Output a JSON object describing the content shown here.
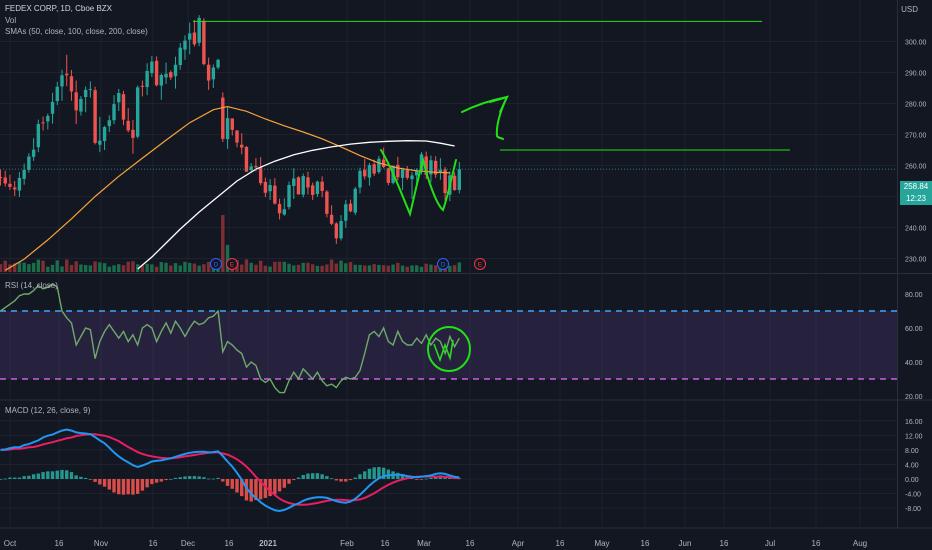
{
  "header": {
    "symbol": "FEDEX CORP, 1D, Cboe BZX",
    "vol": "Vol",
    "smas": "SMAs (50, close, 100, close, 200, close)",
    "currency": "USD"
  },
  "price_badge": {
    "price": "258.84",
    "countdown": "12:23"
  },
  "rsi_header": "RSI (14, close)",
  "macd_header": "MACD (12, 26, close, 9)",
  "event_markers": [
    {
      "letter": "D",
      "x_label": "Dec 7"
    },
    {
      "letter": "E",
      "x_label": "Dec 17"
    },
    {
      "letter": "D",
      "x_label": "Mar 5"
    },
    {
      "letter": "E",
      "x_label": "Mar 18"
    }
  ],
  "colors": {
    "background": "#131722",
    "up": "#26a69a",
    "down": "#ef5350",
    "sma_orange": "#f7a33a",
    "sma_white": "#ffffff",
    "annotation_green": "#22e017",
    "rsi_line": "#6fa96b",
    "rsi_band": "#7e57c2",
    "rsi_upper_dash": "#42a5f5",
    "rsi_lower_dash": "#d05ce3",
    "macd_line": "#2196f3",
    "signal_line": "#e91e63"
  },
  "chart_data": [
    {
      "type": "candlestick",
      "title": "FEDEX CORP, 1D, Cboe BZX",
      "ylim": [
        225,
        310
      ],
      "y_ticks": [
        "230.00",
        "240.00",
        "250.00",
        "260.00",
        "270.00",
        "280.00",
        "290.00",
        "300.00"
      ],
      "x_ticks": [
        "Oct",
        "16",
        "Nov",
        "16",
        "Dec",
        "16",
        "2021",
        "Feb",
        "16",
        "Mar",
        "16",
        "Apr",
        "16",
        "May",
        "16",
        "Jun",
        "16",
        "Jul",
        "16",
        "Aug"
      ],
      "last_close": 258.84,
      "candles": [
        [
          256.3,
          258.6,
          253.5,
          256.2
        ],
        [
          256.1,
          258.3,
          253.2,
          254.2
        ],
        [
          254.1,
          257.0,
          252.1,
          253.1
        ],
        [
          252.9,
          255.0,
          250.2,
          252.3
        ],
        [
          251.9,
          257.9,
          249.8,
          256.0
        ],
        [
          255.7,
          260.6,
          253.8,
          258.6
        ],
        [
          258.6,
          264.0,
          257.7,
          262.9
        ],
        [
          262.8,
          268.8,
          261.5,
          265.1
        ],
        [
          265.9,
          274.8,
          264.3,
          273.4
        ],
        [
          273.9,
          275.8,
          271.3,
          273.6
        ],
        [
          274.2,
          276.8,
          271.6,
          276.0
        ],
        [
          276.7,
          283.5,
          273.5,
          280.5
        ],
        [
          280.8,
          287.0,
          279.5,
          285.4
        ],
        [
          285.5,
          290.9,
          280.9,
          289.1
        ],
        [
          289.6,
          295.7,
          285.6,
          289.1
        ],
        [
          288.8,
          290.8,
          280.9,
          283.9
        ],
        [
          283.6,
          287.4,
          273.4,
          277.8
        ],
        [
          277.4,
          282.4,
          276.1,
          281.5
        ],
        [
          282.1,
          285.5,
          277.2,
          284.4
        ],
        [
          284.4,
          287.1,
          281.9,
          284.7
        ],
        [
          284.3,
          285.4,
          266.8,
          267.3
        ],
        [
          266.7,
          275.7,
          264.3,
          268.0
        ],
        [
          267.9,
          272.8,
          265.0,
          272.4
        ],
        [
          272.7,
          276.2,
          270.8,
          274.6
        ],
        [
          274.6,
          282.7,
          273.3,
          279.8
        ],
        [
          280.4,
          284.7,
          277.6,
          283.4
        ],
        [
          283.0,
          284.1,
          273.0,
          274.8
        ],
        [
          274.4,
          278.5,
          270.7,
          271.3
        ],
        [
          271.5,
          274.7,
          263.8,
          268.9
        ],
        [
          269.3,
          285.8,
          268.7,
          285.2
        ],
        [
          285.7,
          287.4,
          282.3,
          285.6
        ],
        [
          285.3,
          293.0,
          282.7,
          290.5
        ],
        [
          289.8,
          295.3,
          288.6,
          293.5
        ],
        [
          293.8,
          295.2,
          285.5,
          285.9
        ],
        [
          285.8,
          289.7,
          281.2,
          289.2
        ],
        [
          288.4,
          293.2,
          286.3,
          289.6
        ],
        [
          290.1,
          290.7,
          287.6,
          288.4
        ],
        [
          288.8,
          295.1,
          284.8,
          292.5
        ],
        [
          292.4,
          299.5,
          290.9,
          298.0
        ],
        [
          297.4,
          302.0,
          294.1,
          300.3
        ],
        [
          300.6,
          306.1,
          295.9,
          302.6
        ],
        [
          302.9,
          306.9,
          298.4,
          299.1
        ],
        [
          299.6,
          308.5,
          298.5,
          307.6
        ],
        [
          306.7,
          307.5,
          292.3,
          292.7
        ],
        [
          292.5,
          294.8,
          284.4,
          287.4
        ],
        [
          287.8,
          292.6,
          285.0,
          291.6
        ],
        [
          291.6,
          294.4,
          291.0,
          294.1
        ],
        [
          281.9,
          283.6,
          267.6,
          268.6
        ],
        [
          268.5,
          279.0,
          265.4,
          275.3
        ],
        [
          275.2,
          275.2,
          269.7,
          271.5
        ],
        [
          271.3,
          271.4,
          265.9,
          267.4
        ],
        [
          266.7,
          270.4,
          263.6,
          265.8
        ],
        [
          266.0,
          266.3,
          257.9,
          258.0
        ],
        [
          258.5,
          260.8,
          257.9,
          259.7
        ],
        [
          259.8,
          262.4,
          258.1,
          259.4
        ],
        [
          259.4,
          262.7,
          253.6,
          254.3
        ],
        [
          254.7,
          256.1,
          249.8,
          251.2
        ],
        [
          251.7,
          255.6,
          248.9,
          253.7
        ],
        [
          253.5,
          255.9,
          247.4,
          247.7
        ],
        [
          247.6,
          249.3,
          242.6,
          244.6
        ],
        [
          244.2,
          249.4,
          243.8,
          245.9
        ],
        [
          246.6,
          254.8,
          245.8,
          253.7
        ],
        [
          253.4,
          259.1,
          249.2,
          255.8
        ],
        [
          256.2,
          256.5,
          250.6,
          250.7
        ],
        [
          250.6,
          257.4,
          249.7,
          256.6
        ],
        [
          256.2,
          258.0,
          250.7,
          252.9
        ],
        [
          253.6,
          254.5,
          248.9,
          250.5
        ],
        [
          250.8,
          255.1,
          249.9,
          254.8
        ],
        [
          254.8,
          256.5,
          249.8,
          251.8
        ],
        [
          251.6,
          252.0,
          243.3,
          244.4
        ],
        [
          244.1,
          247.2,
          240.7,
          241.2
        ],
        [
          241.3,
          241.7,
          234.7,
          236.5
        ],
        [
          236.5,
          244.0,
          235.8,
          242.1
        ],
        [
          242.2,
          248.9,
          239.9,
          247.5
        ],
        [
          247.7,
          249.0,
          244.9,
          245.2
        ],
        [
          244.8,
          253.1,
          244.0,
          252.5
        ],
        [
          252.9,
          259.3,
          251.0,
          258.3
        ],
        [
          258.6,
          262.1,
          255.5,
          256.5
        ],
        [
          256.1,
          260.8,
          253.5,
          260.1
        ],
        [
          260.4,
          261.9,
          256.6,
          257.4
        ],
        [
          257.9,
          263.1,
          257.3,
          262.2
        ],
        [
          261.9,
          265.8,
          259.1,
          259.5
        ],
        [
          259.1,
          259.3,
          253.6,
          254.4
        ],
        [
          254.4,
          260.0,
          253.9,
          259.9
        ],
        [
          260.2,
          262.8,
          255.2,
          256.2
        ],
        [
          256.0,
          259.3,
          252.1,
          258.8
        ],
        [
          258.6,
          259.8,
          255.4,
          256.0
        ],
        [
          255.6,
          257.9,
          249.2,
          256.8
        ],
        [
          256.8,
          259.1,
          253.6,
          258.3
        ],
        [
          258.4,
          264.4,
          257.1,
          263.6
        ],
        [
          262.9,
          264.5,
          255.6,
          257.0
        ],
        [
          257.1,
          263.2,
          254.6,
          261.7
        ],
        [
          261.5,
          263.0,
          256.0,
          257.1
        ],
        [
          257.6,
          262.4,
          255.4,
          258.6
        ],
        [
          258.7,
          259.5,
          248.1,
          251.1
        ],
        [
          250.6,
          258.1,
          248.5,
          256.8
        ],
        [
          256.7,
          257.8,
          251.8,
          252.1
        ],
        [
          252.1,
          261.1,
          251.0,
          258.8
        ]
      ],
      "volumes": [
        1.32,
        1.88,
        1.26,
        1.43,
        1.61,
        1.55,
        1.31,
        1.51,
        2.05,
        1.89,
        0.87,
        1.18,
        1.94,
        0.92,
        2.07,
        1.17,
        1.77,
        1.25,
        1.16,
        1.1,
        1.76,
        1.6,
        1.47,
        0.89,
        1.12,
        1.3,
        1.13,
        1.72,
        1.79,
        1.28,
        1.1,
        1.35,
        1.28,
        0.88,
        1.66,
        1.53,
        1.08,
        1.48,
        1.09,
        1.7,
        1.51,
        1.4,
        1.06,
        1.3,
        1.69,
        2.08,
        1.3,
        9.49,
        4.52,
        2.1,
        1.95,
        1.24,
        2.11,
        1.53,
        1.2,
        1.87,
        1.05,
        0.92,
        1.69,
        1.72,
        1.7,
        1.39,
        1.1,
        1.2,
        1.53,
        1.54,
        1.28,
        1.01,
        1.04,
        1.25,
        2.07,
        1.4,
        1.91,
        1.45,
        1.66,
        1.2,
        1.18,
        1.09,
        1.11,
        1.31,
        1.18,
        1.14,
        1.05,
        1.24,
        1.53,
        1.08,
        0.88,
        1.1,
        1.11,
        0.85,
        1.39,
        1.23,
        1.12,
        0.92,
        0.84,
        1.02,
        1.13,
        1.6
      ],
      "sma50": [
        [
          1,
          226.2
        ],
        [
          5,
          229.8
        ],
        [
          10,
          236.0
        ],
        [
          15,
          242.8
        ],
        [
          20,
          250.0
        ],
        [
          25,
          256.5
        ],
        [
          30,
          262.4
        ],
        [
          35,
          268.2
        ],
        [
          40,
          273.8
        ],
        [
          45,
          278.0
        ],
        [
          48,
          279.0
        ],
        [
          52,
          277.5
        ],
        [
          56,
          275.0
        ],
        [
          60,
          272.8
        ],
        [
          64,
          270.8
        ],
        [
          68,
          268.6
        ],
        [
          72,
          266.0
        ],
        [
          76,
          263.2
        ],
        [
          80,
          260.8
        ],
        [
          84,
          259.2
        ],
        [
          88,
          258.3
        ],
        [
          92,
          257.8
        ],
        [
          95,
          257.6
        ]
      ],
      "sma100": [
        [
          29,
          226.6
        ],
        [
          32,
          230.5
        ],
        [
          35,
          235.0
        ],
        [
          38,
          239.5
        ],
        [
          42,
          245.0
        ],
        [
          46,
          250.0
        ],
        [
          50,
          255.0
        ],
        [
          54,
          258.8
        ],
        [
          58,
          261.4
        ],
        [
          62,
          263.5
        ],
        [
          66,
          264.9
        ],
        [
          70,
          266.0
        ],
        [
          74,
          266.9
        ],
        [
          78,
          267.5
        ],
        [
          82,
          267.8
        ],
        [
          86,
          268.0
        ],
        [
          90,
          267.9
        ],
        [
          93,
          267.2
        ],
        [
          96,
          266.3
        ]
      ]
    },
    {
      "type": "line",
      "title": "RSI (14, close)",
      "ylim": [
        19,
        86
      ],
      "y_ticks": [
        "20.00",
        "40.00",
        "60.00",
        "80.00"
      ],
      "band": [
        30,
        70
      ],
      "rsi": [
        70,
        72,
        74,
        76,
        79,
        80,
        80,
        82,
        85,
        83,
        84,
        86,
        84,
        70,
        66,
        63,
        50,
        55,
        60,
        59,
        42,
        52,
        58,
        62,
        58,
        54,
        58,
        52,
        56,
        50,
        60,
        62,
        60,
        52,
        58,
        63,
        57,
        64,
        60,
        55,
        60,
        64,
        62,
        63,
        66,
        67,
        70,
        46,
        52,
        50,
        47,
        45,
        37,
        40,
        38,
        30,
        28,
        30,
        25,
        22,
        22,
        29,
        34,
        30,
        36,
        33,
        30,
        34,
        29,
        26,
        27,
        25,
        29,
        31,
        30,
        31,
        35,
        45,
        56,
        58,
        55,
        60,
        52,
        50,
        58,
        52,
        50,
        50,
        54,
        51,
        56,
        50,
        54,
        52,
        45,
        55,
        49,
        54
      ]
    },
    {
      "type": "bar",
      "title": "MACD (12, 26, close, 9)",
      "ylim": [
        -11,
        18
      ],
      "y_ticks": [
        "-8.00",
        "-4.00",
        "0.00",
        "4.00",
        "8.00",
        "12.00",
        "16.00"
      ],
      "macd": [
        8.0,
        8.1,
        8.5,
        8.7,
        8.7,
        9.3,
        9.6,
        10.1,
        10.6,
        11.4,
        11.9,
        12.2,
        12.8,
        13.3,
        13.6,
        13.3,
        12.8,
        12.6,
        12.5,
        12.3,
        11.5,
        10.6,
        9.8,
        8.6,
        7.3,
        6.2,
        5.3,
        4.6,
        3.8,
        3.3,
        3.7,
        4.2,
        4.8,
        5.0,
        5.1,
        5.4,
        5.7,
        6.1,
        6.5,
        6.9,
        7.2,
        7.4,
        7.5,
        7.5,
        7.3,
        7.4,
        7.6,
        6.3,
        4.8,
        3.4,
        1.7,
        -0.2,
        -2.5,
        -4.1,
        -5.2,
        -6.4,
        -7.3,
        -8.0,
        -8.6,
        -8.8,
        -8.5,
        -7.9,
        -7.2,
        -6.7,
        -6.0,
        -5.5,
        -5.2,
        -5.0,
        -5.0,
        -5.2,
        -5.6,
        -6.1,
        -6.4,
        -6.5,
        -6.2,
        -5.4,
        -4.3,
        -3.1,
        -1.8,
        -0.7,
        0.2,
        0.8,
        1.0,
        1.1,
        1.2,
        1.1,
        0.8,
        0.6,
        0.5,
        0.6,
        0.8,
        1.0,
        1.4,
        1.6,
        1.4,
        1.0,
        0.6,
        0.4
      ],
      "signal": [
        8.0,
        8.0,
        8.1,
        8.3,
        8.3,
        8.5,
        8.7,
        8.8,
        9.1,
        9.5,
        9.8,
        10.1,
        10.5,
        10.8,
        11.2,
        11.4,
        11.8,
        12.0,
        12.2,
        12.3,
        12.3,
        12.1,
        11.9,
        11.5,
        11.0,
        10.4,
        9.6,
        8.8,
        8.1,
        7.4,
        6.9,
        6.5,
        6.2,
        6.0,
        5.8,
        5.7,
        5.7,
        5.8,
        6.0,
        6.2,
        6.4,
        6.6,
        6.8,
        7.0,
        7.2,
        7.3,
        7.3,
        7.0,
        6.7,
        6.1,
        5.4,
        4.5,
        3.4,
        2.1,
        0.6,
        -0.8,
        -2.1,
        -3.3,
        -4.4,
        -5.4,
        -6.1,
        -6.6,
        -6.9,
        -7.1,
        -7.1,
        -7.0,
        -6.8,
        -6.6,
        -6.3,
        -6.0,
        -5.8,
        -5.7,
        -5.7,
        -5.8,
        -5.9,
        -5.8,
        -5.6,
        -5.2,
        -4.6,
        -3.9,
        -3.1,
        -2.3,
        -1.6,
        -1.0,
        -0.5,
        -0.1,
        0.2,
        0.4,
        0.6,
        0.7,
        0.7,
        0.7,
        0.6,
        0.6,
        0.6,
        0.5,
        0.3,
        0.2
      ],
      "note": ""
    }
  ],
  "annotations": {
    "resistance_upper": 306.5,
    "resistance_lower": 265.0
  }
}
